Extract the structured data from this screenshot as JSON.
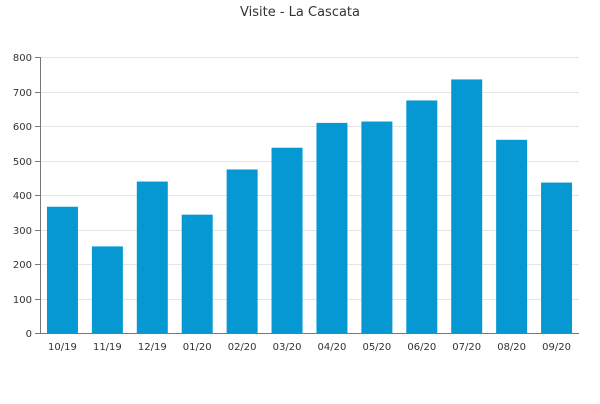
{
  "chart_data": {
    "type": "bar",
    "title": "Visite - La Cascata",
    "xlabel": "",
    "ylabel": "",
    "categories": [
      "10/19",
      "11/19",
      "12/19",
      "01/20",
      "02/20",
      "03/20",
      "04/20",
      "05/20",
      "06/20",
      "07/20",
      "08/20",
      "09/20"
    ],
    "values": [
      366,
      251,
      439,
      343,
      474,
      537,
      609,
      613,
      674,
      735,
      560,
      436
    ],
    "ylim": [
      0,
      800
    ],
    "yticks": [
      0,
      100,
      200,
      300,
      400,
      500,
      600,
      700,
      800
    ],
    "grid": true,
    "legend": "none",
    "colors": {
      "bar": "#0598d3",
      "grid": "#e5e5e5",
      "axis": "#777777",
      "text": "#333333"
    }
  }
}
